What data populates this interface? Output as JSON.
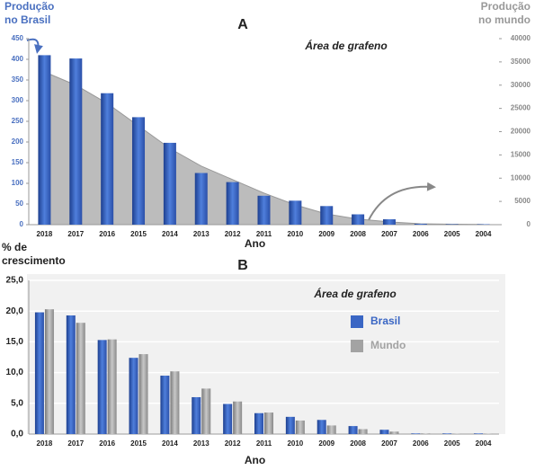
{
  "chart_data": [
    {
      "type": "bar",
      "title": "A",
      "annotation": "Área de grafeno",
      "y_label": [
        "Produção",
        "no Brasil"
      ],
      "y2_label": [
        "Produção",
        "no mundo"
      ],
      "x_label": "Ano",
      "categories": [
        "2018",
        "2017",
        "2016",
        "2015",
        "2014",
        "2013",
        "2012",
        "2011",
        "2010",
        "2009",
        "2008",
        "2007",
        "2006",
        "2005",
        "2004"
      ],
      "series": [
        {
          "name": "Brasil",
          "color": "#3a66c4",
          "kind": "bar",
          "values": [
            410,
            402,
            318,
            260,
            198,
            125,
            103,
            70,
            58,
            45,
            25,
            13,
            2,
            1,
            1
          ]
        },
        {
          "name": "Mundo",
          "color": "#b5b5b5",
          "kind": "area",
          "axis": "y2",
          "values": [
            32850,
            30000,
            26100,
            21250,
            16400,
            12600,
            9700,
            6800,
            4250,
            2300,
            1200,
            600,
            200,
            100,
            50
          ]
        }
      ],
      "ylim": [
        0,
        450
      ],
      "yticks": [
        0,
        50,
        100,
        150,
        200,
        250,
        300,
        350,
        400,
        450
      ],
      "y2lim": [
        0,
        40000
      ],
      "y2ticks": [
        0,
        5000,
        10000,
        15000,
        20000,
        25000,
        30000,
        35000,
        40000
      ],
      "legend": false,
      "grid": false
    },
    {
      "type": "bar",
      "title": "B",
      "annotation": "Área de grafeno",
      "y_label": [
        "% de",
        "crescimento"
      ],
      "x_label": "Ano",
      "categories": [
        "2018",
        "2017",
        "2016",
        "2015",
        "2014",
        "2013",
        "2012",
        "2011",
        "2010",
        "2009",
        "2008",
        "2007",
        "2006",
        "2005",
        "2004"
      ],
      "series": [
        {
          "name": "Brasil",
          "color": "#3a66c4",
          "kind": "bar",
          "values": [
            19.8,
            19.3,
            15.3,
            12.4,
            9.5,
            6.0,
            4.9,
            3.4,
            2.8,
            2.3,
            1.3,
            0.7,
            0.1,
            0.1,
            0.1
          ]
        },
        {
          "name": "Mundo",
          "color": "#a3a3a3",
          "kind": "bar",
          "values": [
            20.3,
            18.1,
            15.4,
            13.0,
            10.2,
            7.4,
            5.3,
            3.5,
            2.2,
            1.4,
            0.8,
            0.4,
            0.1,
            0.05,
            0.05
          ]
        }
      ],
      "ylim": [
        0,
        25
      ],
      "yticks": [
        {
          "value": 0,
          "label": "0,0"
        },
        {
          "value": 5,
          "label": "5,0"
        },
        {
          "value": 10,
          "label": "10,0"
        },
        {
          "value": 15,
          "label": "15,0"
        },
        {
          "value": 20,
          "label": "20,0"
        },
        {
          "value": 25,
          "label": "25,0"
        }
      ],
      "legend": true,
      "grid": true
    }
  ]
}
